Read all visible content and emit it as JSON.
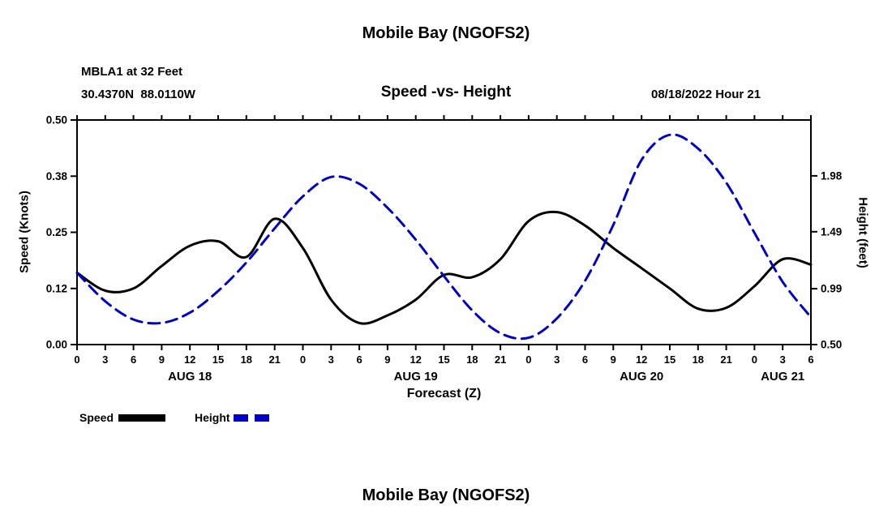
{
  "page": {
    "title_top": "Mobile Bay (NGOFS2)",
    "title_bottom": "Mobile Bay (NGOFS2)"
  },
  "header": {
    "station": "MBLA1 at 32 Feet",
    "coordinates": "30.4370N  88.0110W",
    "datetime": "08/18/2022 Hour 21"
  },
  "chart_data": {
    "type": "line",
    "title": "Speed -vs- Height",
    "xlabel": "Forecast (Z)",
    "ylabel_left": "Speed (Knots)",
    "ylabel_right": "Height (feet)",
    "x_hours_range": [
      0,
      78
    ],
    "x_tick_step": 3,
    "x_tick_labels": [
      "0",
      "3",
      "6",
      "9",
      "12",
      "15",
      "18",
      "21",
      "0",
      "3",
      "6",
      "9",
      "12",
      "15",
      "18",
      "21",
      "0",
      "3",
      "6",
      "9",
      "12",
      "15",
      "18",
      "21",
      "0",
      "3",
      "6"
    ],
    "date_labels": [
      {
        "label": "AUG 18",
        "hour": 12
      },
      {
        "label": "AUG 19",
        "hour": 36
      },
      {
        "label": "AUG 20",
        "hour": 60
      },
      {
        "label": "AUG 21",
        "hour": 75
      }
    ],
    "left_axis": {
      "min": 0.0,
      "max": 0.5,
      "tick_values": [
        0,
        0.125,
        0.25,
        0.375,
        0.5
      ],
      "tick_labels": [
        "0.00",
        "0.12",
        "0.25",
        "0.38",
        "0.50"
      ]
    },
    "right_axis": {
      "min": 0.5,
      "max": 2.47,
      "tick_values": [
        0.5,
        0.99,
        1.49,
        1.98
      ],
      "tick_labels": [
        "0.50",
        "0.99",
        "1.49",
        "1.98"
      ]
    },
    "grid": false,
    "legend_position": "bottom-left",
    "series": [
      {
        "name": "Speed",
        "axis": "left",
        "color": "#000000",
        "style": "solid",
        "x": [
          0,
          3,
          6,
          9,
          12,
          15,
          18,
          21,
          24,
          27,
          30,
          33,
          36,
          39,
          42,
          45,
          48,
          51,
          54,
          57,
          60,
          63,
          66,
          69,
          72,
          75,
          78
        ],
        "values": [
          0.16,
          0.12,
          0.125,
          0.175,
          0.22,
          0.23,
          0.195,
          0.28,
          0.215,
          0.1,
          0.048,
          0.065,
          0.1,
          0.155,
          0.15,
          0.19,
          0.275,
          0.295,
          0.265,
          0.215,
          0.17,
          0.125,
          0.08,
          0.082,
          0.13,
          0.19,
          0.178
        ]
      },
      {
        "name": "Height",
        "axis": "right",
        "color": "#0000cc",
        "style": "dashed",
        "x": [
          0,
          3,
          6,
          9,
          12,
          15,
          18,
          21,
          24,
          27,
          30,
          33,
          36,
          39,
          42,
          45,
          48,
          51,
          54,
          57,
          60,
          63,
          66,
          69,
          72,
          75,
          78
        ],
        "values": [
          1.13,
          0.88,
          0.72,
          0.69,
          0.78,
          0.97,
          1.22,
          1.52,
          1.8,
          1.97,
          1.91,
          1.7,
          1.42,
          1.1,
          0.8,
          0.6,
          0.56,
          0.73,
          1.06,
          1.55,
          2.12,
          2.34,
          2.22,
          1.92,
          1.48,
          1.05,
          0.74
        ]
      }
    ],
    "legend": [
      {
        "label": "Speed",
        "color": "#000000",
        "style": "solid"
      },
      {
        "label": "Height",
        "color": "#0000cc",
        "style": "dashed"
      }
    ]
  }
}
